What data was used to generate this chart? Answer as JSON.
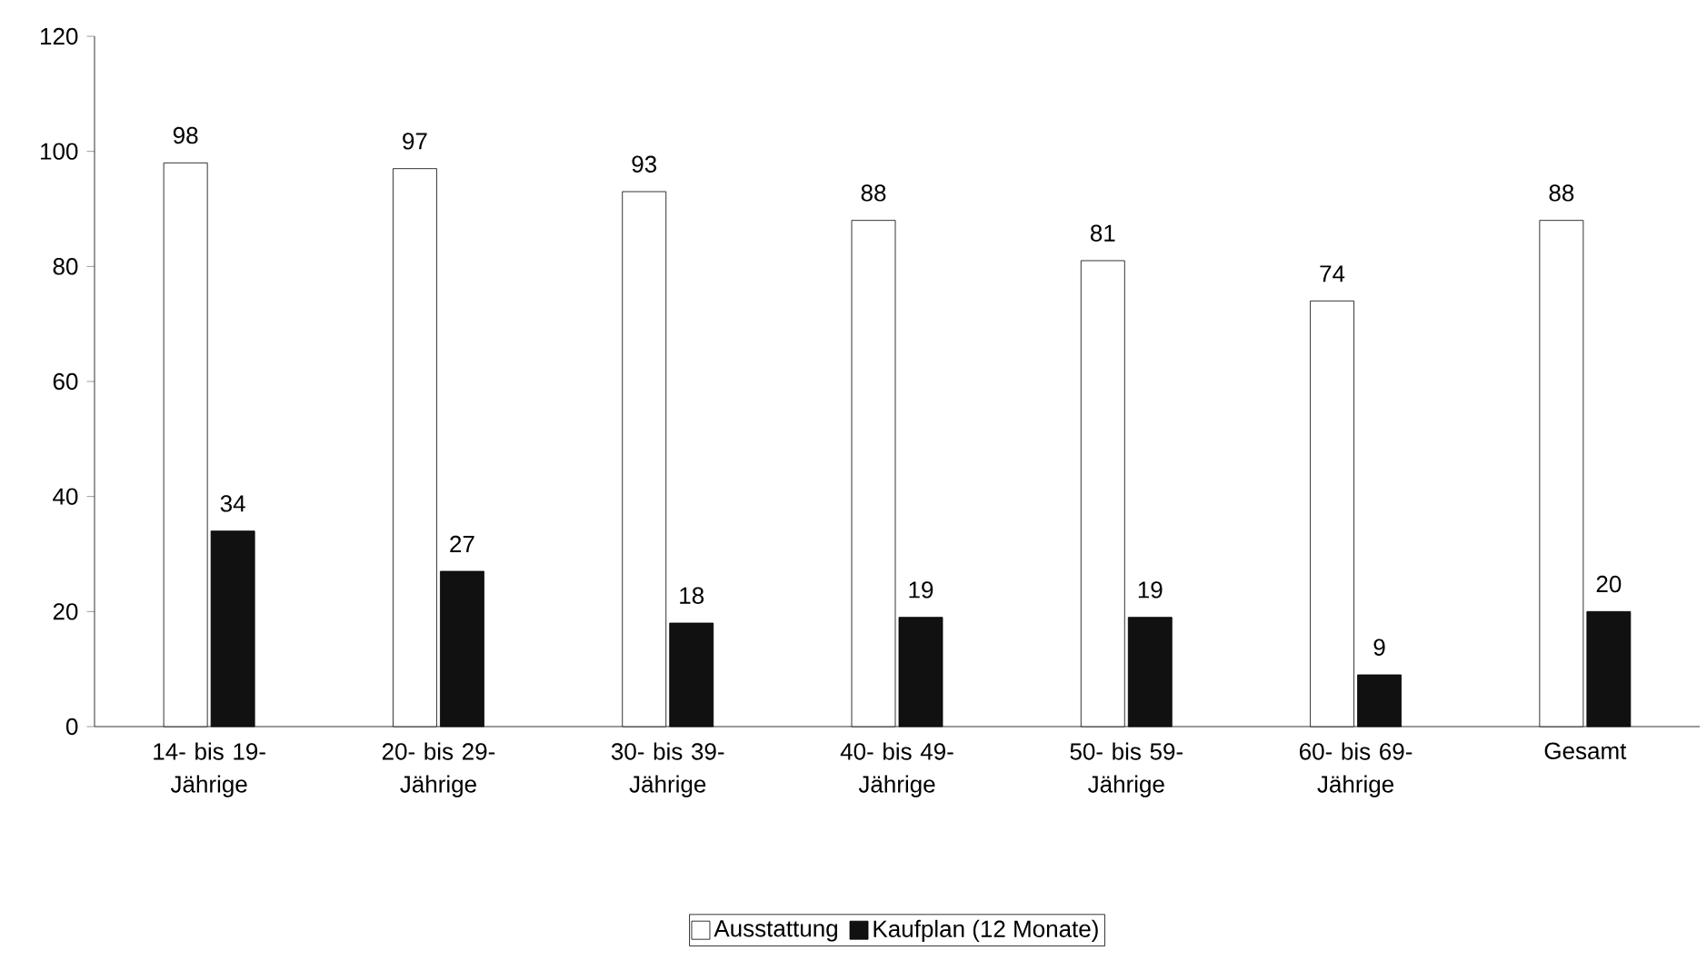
{
  "chart_data": {
    "type": "bar",
    "categories": [
      "14- bis 19- Jährige",
      "20- bis 29- Jährige",
      "30- bis 39- Jährige",
      "40- bis 49- Jährige",
      "50- bis 59- Jährige",
      "60- bis 69- Jährige",
      "Gesamt"
    ],
    "series": [
      {
        "name": "Ausstattung",
        "color": "#ffffff",
        "values": [
          98,
          97,
          93,
          88,
          81,
          74,
          88
        ]
      },
      {
        "name": "Kaufplan (12 Monate)",
        "color": "#111111",
        "values": [
          34,
          27,
          18,
          19,
          19,
          9,
          20
        ]
      }
    ],
    "ylim": [
      0,
      120
    ],
    "yticks": [
      0,
      20,
      40,
      60,
      80,
      100,
      120
    ],
    "legend": "bottom",
    "data_labels": true
  }
}
